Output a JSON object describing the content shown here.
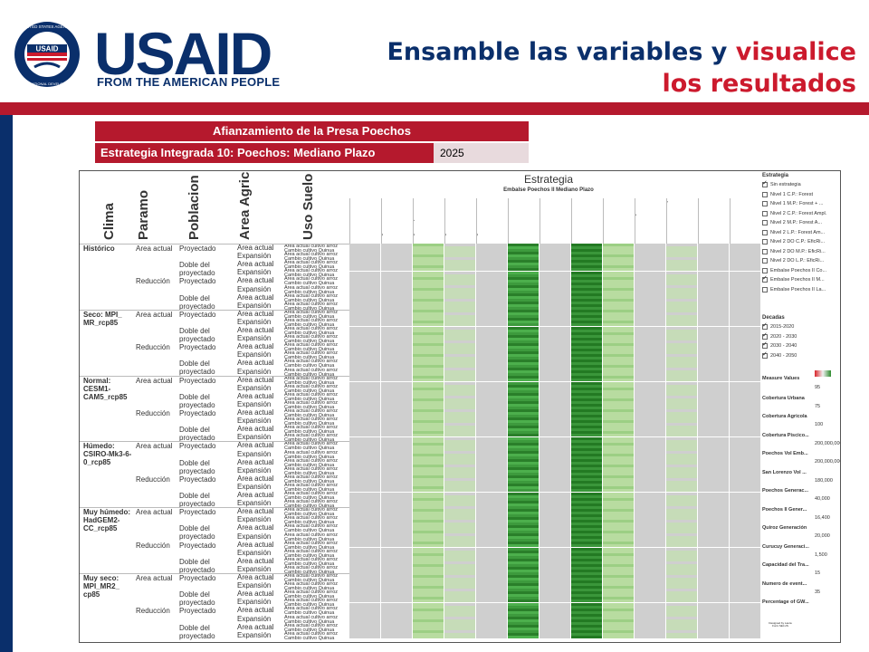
{
  "header": {
    "logo_word": "USAID",
    "logo_tagline": "FROM THE AMERICAN PEOPLE",
    "seal_text": "UNITED STATES AGENCY FOR INTERNATIONAL DEVELOPMENT",
    "seal_center": "USAID",
    "title_part1": "Ensamble las variables y ",
    "title_part2": "visualice",
    "title_part3": "los resultados"
  },
  "dashboard": {
    "title": "Afianzamiento de la Presa Poechos",
    "strategy_label": "Estrategia Integrada 10: Poechos: Mediano Plazo",
    "strategy_year": "2025"
  },
  "viz": {
    "row_headers": [
      "Clima",
      "Paramo",
      "Poblacion",
      "Area Agric",
      "Uso Suelo"
    ],
    "strategy_header": "Estrategia",
    "strategy_subheader": "Embalse Poechos II Mediano Plazo",
    "columns": [
      "Dif. Vulnerabilidad Urbana",
      "Dif. Vulnerabilidad Region Alto Piura",
      "Dif. Vulnerabilidad Region Bajo Piura",
      "Dif. Vulnerabilidad Region Chira",
      "Dif. Vulnerabilidad Region San Lorenzo",
      "Dif. Vulnerabilidad Embal Poechos",
      "Dif. Vulnerabilidad Embal San Lorenzo",
      "Dif. Vulnerabilidad Generacion Poechos",
      "Dif. Vulnerabilidad Generacion Poechos II",
      "Dif. Vulnerabilidad Generacion Quiroz",
      "Dif. Vulnerabilidad Generacion Curucuy",
      "Dif. Vulnerabilidad Inundacion en Piura",
      "Dif. Vulnerabilidad Sites GW"
    ],
    "column_colors": [
      "#cfcfcf",
      "#cfcfcf",
      "#b8dca0",
      "#c6dcb8",
      "#cfcfcf",
      "#3d9a3d",
      "#cfcfcf",
      "#2f8a2f",
      "#b8dca0",
      "#cfcfcf",
      "#c6dcb8",
      "#cfcfcf",
      "#cfcfcf"
    ],
    "uso_suelo_labels": [
      "Area actual cultivo arroz",
      "Cambio cultivo Quinua"
    ],
    "climates": [
      {
        "name": "Histórico"
      },
      {
        "name": "Seco: MPI_ MR_rcp85"
      },
      {
        "name": "Normal: CESM1- CAM5_rcp85"
      },
      {
        "name": "Húmedo: CSIRO-Mk3-6- 0_rcp85"
      },
      {
        "name": "Muy húmedo: HadGEM2- CC_rcp85"
      },
      {
        "name": "Muy seco: MPI_MR2_ cp85"
      }
    ],
    "paramo": [
      "Area actual",
      "Reducción"
    ],
    "poblacion": [
      "Proyectado",
      "Doble del proyectado"
    ],
    "area_agric": [
      "Area actual",
      "Expansión"
    ]
  },
  "legend": {
    "estrategia_title": "Estrategia",
    "estrategia_items": [
      {
        "label": "Sin estrategia",
        "checked": true
      },
      {
        "label": "Nivel 1 C.P.: Forest",
        "checked": false
      },
      {
        "label": "Nivel 1 M.P.: Forest + ...",
        "checked": false
      },
      {
        "label": "Nivel 2 C.P.: Forest Ampl.",
        "checked": false
      },
      {
        "label": "Nivel 2 M.P.: Forest A...",
        "checked": false
      },
      {
        "label": "Nivel 2 L.P.: Forest Am...",
        "checked": false
      },
      {
        "label": "Nivel 2 DO C.P.: EficRi...",
        "checked": false
      },
      {
        "label": "Nivel 2 DO M.P.: EficRi...",
        "checked": false
      },
      {
        "label": "Nivel 2 DO L.P.: EficRi...",
        "checked": false
      },
      {
        "label": "Embalse Poechos II Co...",
        "checked": false
      },
      {
        "label": "Embalse Poechos II M...",
        "checked": true
      },
      {
        "label": "Embalse Poechos II La...",
        "checked": false
      }
    ],
    "decadas_title": "Decadas",
    "decadas_items": [
      {
        "label": "2015-2020",
        "checked": true
      },
      {
        "label": "2020 - 2030",
        "checked": true
      },
      {
        "label": "2030 - 2040",
        "checked": true
      },
      {
        "label": "2040 - 2050",
        "checked": true
      }
    ],
    "measure_title": "Measure Values",
    "measures": [
      {
        "label": "Cobertura Urbana",
        "value": "95"
      },
      {
        "label": "Cobertura Agricola",
        "value": "75"
      },
      {
        "label": "Cobertura Piscico...",
        "value": "100"
      },
      {
        "label": "Poechos Vol Emb...",
        "value": "200,000,000"
      },
      {
        "label": "San Lorenzo Vol ...",
        "value": "200,000,000"
      },
      {
        "label": "Poechos Generac...",
        "value": "180,000"
      },
      {
        "label": "Poechos II Gener...",
        "value": "40,000"
      },
      {
        "label": "Quiroz Generación",
        "value": "16,400"
      },
      {
        "label": "Curucuy Generaci...",
        "value": "20,000"
      },
      {
        "label": "Capacidad del Tra...",
        "value": "1,500"
      },
      {
        "label": "Numero de event...",
        "value": "15"
      },
      {
        "label": "Percentage of GW...",
        "value": "35"
      }
    ],
    "credit": "Designed by Laura Forni SEI-US"
  }
}
